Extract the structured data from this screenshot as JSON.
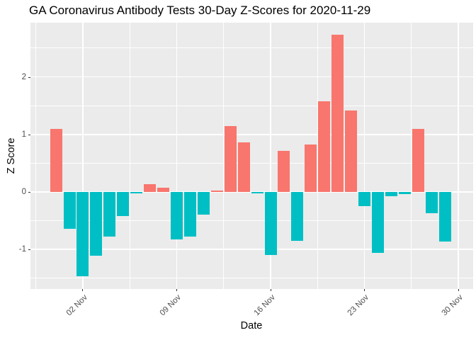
{
  "chart_data": {
    "type": "bar",
    "title": "GA Coronavirus Antibody Tests 30-Day Z-Scores for 2020-11-29",
    "xlabel": "Date",
    "ylabel": "Z Score",
    "categories": [
      "2020-10-31",
      "2020-11-01",
      "2020-11-02",
      "2020-11-03",
      "2020-11-04",
      "2020-11-05",
      "2020-11-06",
      "2020-11-07",
      "2020-11-08",
      "2020-11-09",
      "2020-11-10",
      "2020-11-11",
      "2020-11-12",
      "2020-11-13",
      "2020-11-14",
      "2020-11-15",
      "2020-11-16",
      "2020-11-17",
      "2020-11-18",
      "2020-11-19",
      "2020-11-20",
      "2020-11-21",
      "2020-11-22",
      "2020-11-23",
      "2020-11-24",
      "2020-11-25",
      "2020-11-26",
      "2020-11-27",
      "2020-11-28",
      "2020-11-29"
    ],
    "values": [
      1.1,
      -0.64,
      -1.46,
      -1.11,
      -0.78,
      -0.42,
      -0.03,
      0.13,
      0.07,
      -0.82,
      -0.78,
      -0.39,
      0.03,
      1.14,
      0.86,
      -0.03,
      -1.09,
      0.72,
      -0.85,
      0.82,
      1.58,
      2.73,
      1.42,
      -0.25,
      -1.06,
      -0.08,
      -0.04,
      1.09,
      -0.37,
      -0.86
    ],
    "x_tick_labels": [
      "02 Nov",
      "09 Nov",
      "16 Nov",
      "23 Nov",
      "30 Nov"
    ],
    "x_tick_day_index": [
      2,
      9,
      16,
      23,
      30
    ],
    "x_minor_day_index": [
      -1.5,
      5.5,
      12.5,
      19.5,
      26.5
    ],
    "y_ticks": [
      2,
      1,
      0,
      -1
    ],
    "y_minor_ticks": [
      2.5,
      1.5,
      0.5,
      -0.5,
      -1.5
    ],
    "ylim": [
      -1.69,
      2.94
    ],
    "grid": true,
    "legend": "none",
    "colors": {
      "positive": "#F8766D",
      "negative": "#00BFC4",
      "panel_background": "#EBEBEB",
      "gridline": "#FFFFFF",
      "tick_text": "#4D4D4D",
      "title_text": "#000000"
    }
  }
}
